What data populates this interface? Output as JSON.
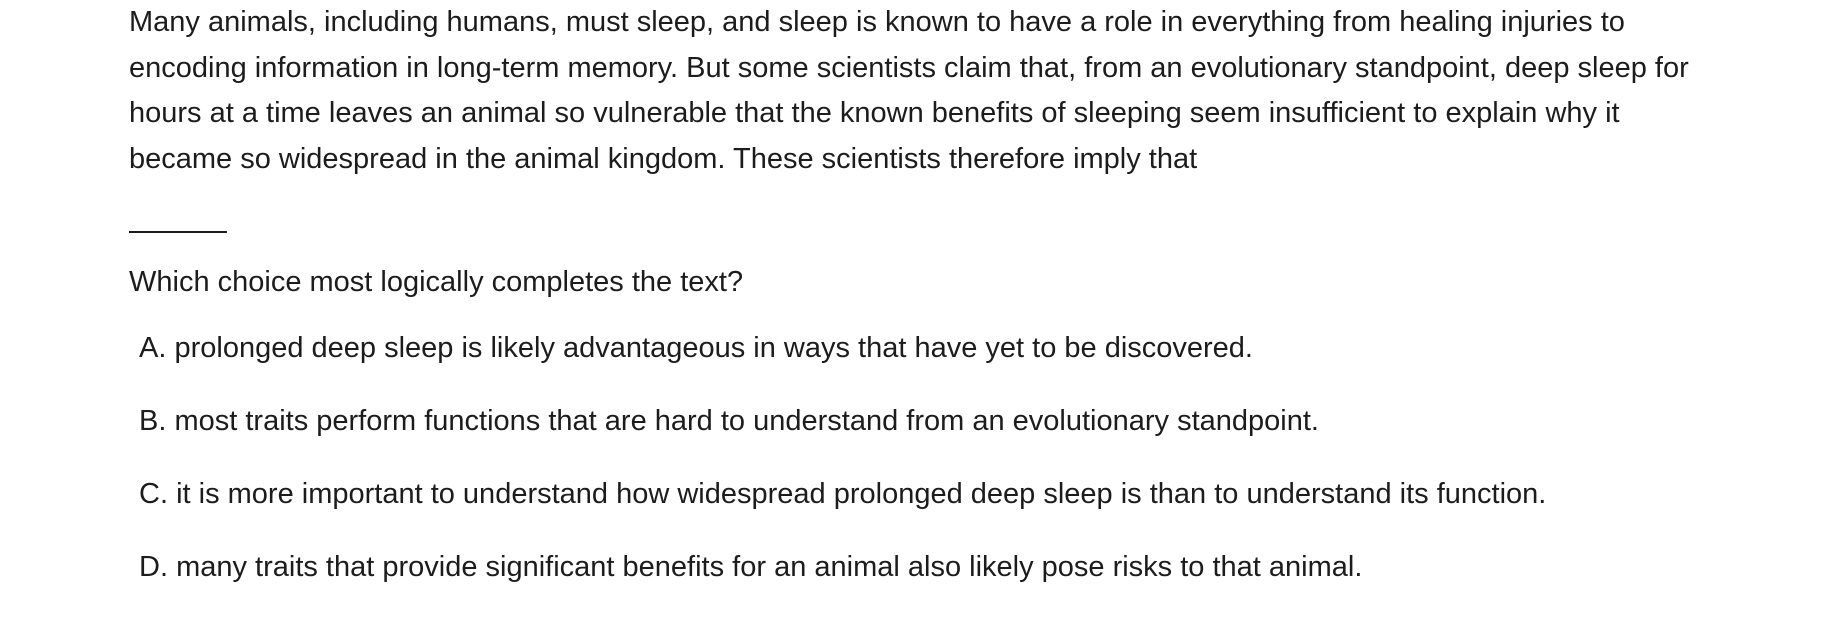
{
  "passage": "Many animals, including humans, must sleep, and sleep is known to have a role in everything from healing injuries to encoding information in long-term memory. But some scientists claim that, from an evolutionary standpoint, deep sleep for hours at a time leaves an animal so vulnerable that the known benefits of sleeping seem insufficient to explain why it became so widespread in the animal kingdom. These scientists therefore imply that",
  "prompt": "Which choice most logically completes the text?",
  "choices": [
    {
      "letter": "A.",
      "text": "prolonged deep sleep is likely advantageous in ways that have yet to be discovered."
    },
    {
      "letter": "B.",
      "text": "most traits perform functions that are hard to understand from an evolutionary standpoint."
    },
    {
      "letter": "C.",
      "text": "it is more important to understand how widespread prolonged deep sleep is than to understand its function."
    },
    {
      "letter": "D.",
      "text": "many traits that provide significant benefits for an animal also likely pose risks to that animal."
    }
  ]
}
